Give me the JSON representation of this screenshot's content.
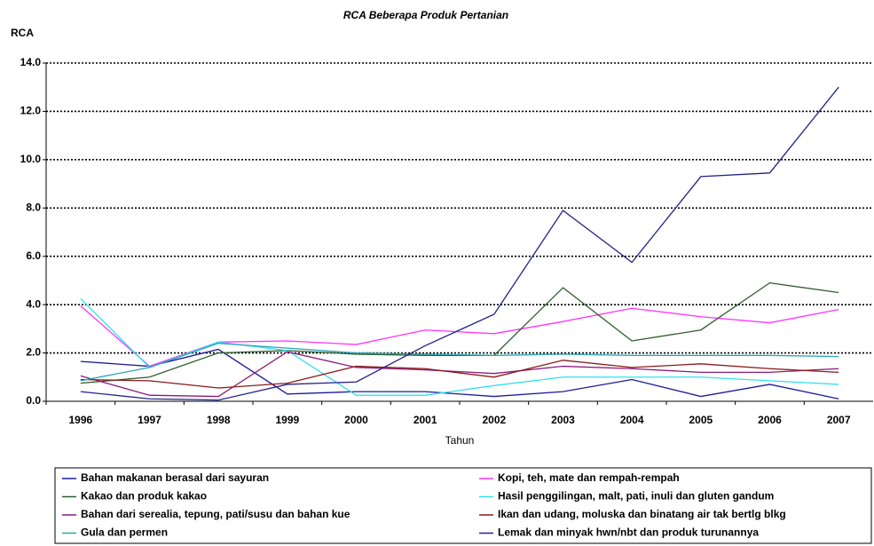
{
  "chart_data": {
    "type": "line",
    "title": "RCA Beberapa Produk Pertanian",
    "y_label": "RCA",
    "x_label": "Tahun",
    "categories": [
      "1996",
      "1997",
      "1998",
      "1999",
      "2000",
      "2001",
      "2002",
      "2003",
      "2004",
      "2005",
      "2006",
      "2007"
    ],
    "series": [
      {
        "name": "Bahan makanan berasal dari sayuran",
        "color": "#1a1a9a",
        "values": [
          1.65,
          1.45,
          2.15,
          0.3,
          0.4,
          0.4,
          0.2,
          0.4,
          0.9,
          0.2,
          0.7,
          0.1
        ]
      },
      {
        "name": "Kopi, teh, mate dan rempah-rempah",
        "color": "#ff33ff",
        "values": [
          3.95,
          1.45,
          2.45,
          2.5,
          2.35,
          2.95,
          2.8,
          3.3,
          3.85,
          3.5,
          3.25,
          3.8
        ]
      },
      {
        "name": "Kakao dan produk kakao",
        "color": "#2e5e2e",
        "values": [
          0.75,
          1.0,
          2.0,
          2.1,
          1.95,
          1.9,
          1.9,
          4.7,
          2.5,
          2.95,
          4.9,
          4.5
        ]
      },
      {
        "name": "Hasil penggilingan, malt, pati, inuli dan gluten gandum",
        "color": "#33e0f0",
        "values": [
          4.25,
          1.4,
          2.45,
          2.1,
          0.25,
          0.25,
          0.65,
          1.0,
          1.0,
          1.0,
          0.85,
          0.7
        ]
      },
      {
        "name": "Bahan dari serealia, tepung, pati/susu dan bahan kue",
        "color": "#8b1a7a",
        "values": [
          1.05,
          0.25,
          0.2,
          2.05,
          1.4,
          1.3,
          1.15,
          1.45,
          1.35,
          1.2,
          1.2,
          1.35
        ]
      },
      {
        "name": "Ikan dan udang, moluska dan binatang air  tak bertlg blkg",
        "color": "#8b1a1a",
        "values": [
          0.9,
          0.85,
          0.55,
          0.75,
          1.45,
          1.35,
          1.0,
          1.7,
          1.4,
          1.55,
          1.35,
          1.2
        ]
      },
      {
        "name": "Gula dan permen",
        "color": "#2aa6b0",
        "values": [
          0.85,
          1.4,
          2.4,
          2.2,
          2.0,
          1.95,
          1.9,
          1.95,
          1.9,
          1.9,
          1.9,
          1.85
        ]
      },
      {
        "name": "Lemak dan minyak hwn/nbt dan produk turunannya",
        "color": "#22228a",
        "values": [
          0.4,
          0.1,
          0.05,
          0.7,
          0.8,
          2.3,
          3.6,
          7.9,
          5.75,
          9.3,
          9.45,
          13.0
        ]
      }
    ],
    "ylim": [
      0,
      14
    ],
    "yticks": [
      {
        "value": 0,
        "label": "0.0"
      },
      {
        "value": 2,
        "label": "2.0"
      },
      {
        "value": 4,
        "label": "4.0"
      },
      {
        "value": 6,
        "label": "6.0"
      },
      {
        "value": 8,
        "label": "8.0"
      },
      {
        "value": 10,
        "label": "10.0"
      },
      {
        "value": 12,
        "label": "12.0"
      },
      {
        "value": 14,
        "label": "14.0"
      }
    ],
    "grid": true
  }
}
